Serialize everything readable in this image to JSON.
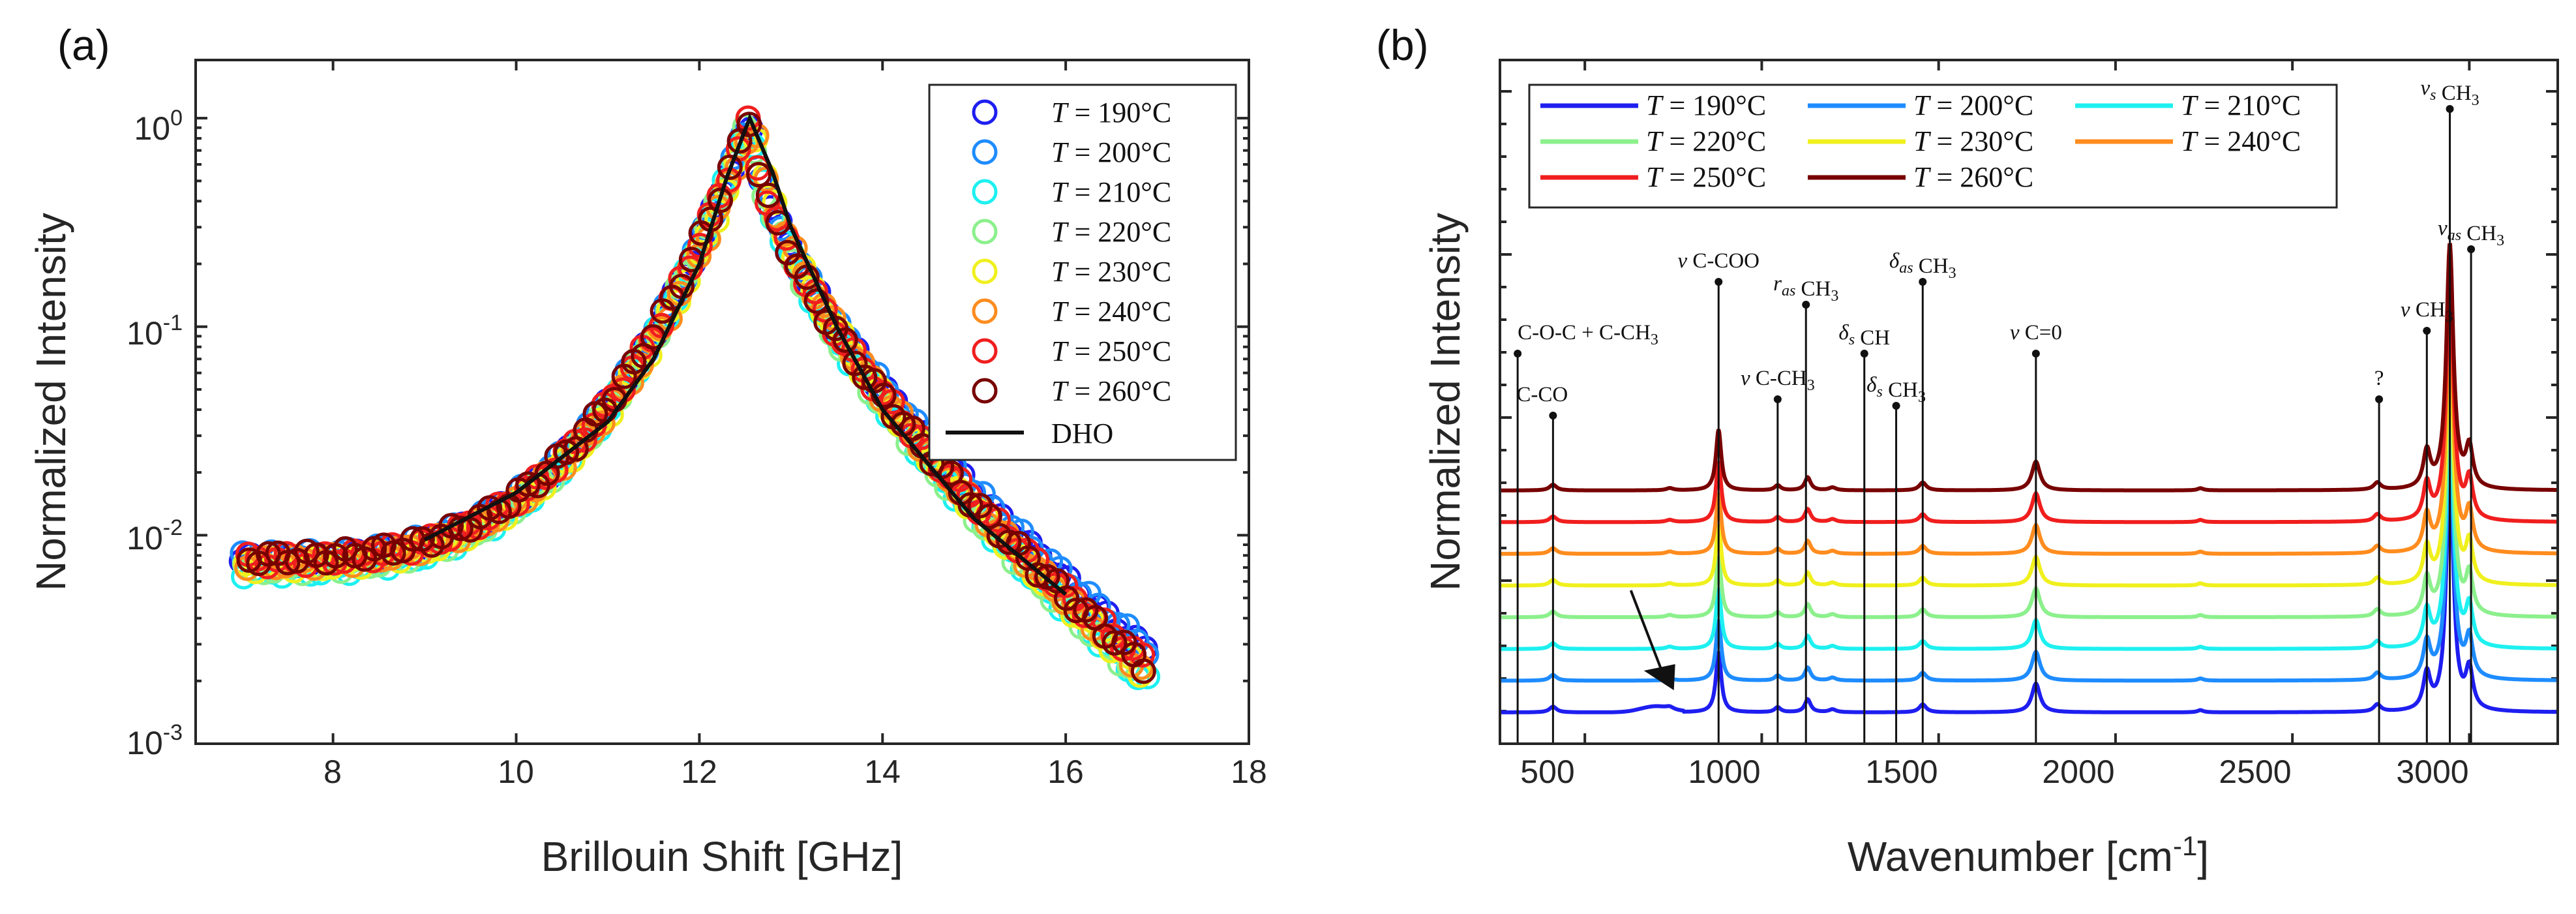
{
  "series_colors": [
    "#1e1ef0",
    "#1e8cff",
    "#1ef0f0",
    "#8cf08c",
    "#f0f01e",
    "#ff8c1e",
    "#f01e1e",
    "#780000"
  ],
  "chart_data": [
    {
      "panel": "(a)",
      "type": "scatter",
      "xlabel": "Brillouin Shift [GHz]",
      "ylabel": "Normalized Intensity",
      "xlim": [
        6.5,
        18
      ],
      "ylim": [
        0.001,
        1.9
      ],
      "yscale": "log",
      "xticks": [
        "8",
        "10",
        "12",
        "14",
        "16",
        "18"
      ],
      "yticks": [
        {
          "base": "10",
          "exp": "-3"
        },
        {
          "base": "10",
          "exp": "-2"
        },
        {
          "base": "10",
          "exp": "-1"
        },
        {
          "base": "10",
          "exp": "0"
        }
      ],
      "legend_position": "top-right",
      "series": [
        {
          "name": "T = 190°C",
          "label_var": "T",
          "label_val": "190°C",
          "x_range": [
            7.0,
            16.9
          ],
          "peak_x": 12.55,
          "y_at_7": 0.0075,
          "y_at_17": 0.0025
        },
        {
          "name": "T = 200°C",
          "label_var": "T",
          "label_val": "200°C",
          "x_range": [
            7.0,
            16.9
          ],
          "peak_x": 12.55,
          "y_at_7": 0.0078,
          "y_at_17": 0.0026
        },
        {
          "name": "T = 210°C",
          "label_var": "T",
          "label_val": "210°C",
          "x_range": [
            7.0,
            16.9
          ],
          "peak_x": 12.55,
          "y_at_7": 0.0068,
          "y_at_17": 0.0018
        },
        {
          "name": "T = 220°C",
          "label_var": "T",
          "label_val": "220°C",
          "x_range": [
            7.0,
            16.9
          ],
          "peak_x": 12.55,
          "y_at_7": 0.007,
          "y_at_17": 0.0018
        },
        {
          "name": "T = 230°C",
          "label_var": "T",
          "label_val": "230°C",
          "x_range": [
            7.0,
            16.9
          ],
          "peak_x": 12.6,
          "y_at_7": 0.0072,
          "y_at_17": 0.0019
        },
        {
          "name": "T = 240°C",
          "label_var": "T",
          "label_val": "240°C",
          "x_range": [
            7.0,
            16.9
          ],
          "peak_x": 12.6,
          "y_at_7": 0.0074,
          "y_at_17": 0.002
        },
        {
          "name": "T = 250°C",
          "label_var": "T",
          "label_val": "250°C",
          "x_range": [
            7.0,
            16.9
          ],
          "peak_x": 12.55,
          "y_at_7": 0.0076,
          "y_at_17": 0.0022
        },
        {
          "name": "T = 260°C",
          "label_var": "T",
          "label_val": "260°C",
          "x_range": [
            7.0,
            16.9
          ],
          "peak_x": 12.55,
          "y_at_7": 0.0078,
          "y_at_17": 0.0021
        }
      ],
      "fit": {
        "name": "DHO",
        "label": "DHO",
        "x": [
          9.0,
          10.0,
          11.0,
          11.5,
          12.0,
          12.3,
          12.55,
          12.8,
          13.0,
          13.5,
          14.0,
          15.0,
          16.0
        ],
        "y": [
          0.0095,
          0.016,
          0.035,
          0.07,
          0.2,
          0.52,
          1.0,
          0.55,
          0.3,
          0.1,
          0.04,
          0.012,
          0.0052
        ]
      }
    },
    {
      "panel": "(b)",
      "type": "line",
      "xlabel": "Wavenumber [cm",
      "xlabel_sup": "-1",
      "xlabel_end": "]",
      "ylabel": "Normalized Intensity",
      "xlim": [
        260,
        3250
      ],
      "xticks": [
        "500",
        "1000",
        "1500",
        "2000",
        "2500",
        "3000"
      ],
      "legend_position": "top-left",
      "series": [
        {
          "name": "T = 190°C",
          "label_var": "T",
          "label_val": "190°C",
          "offset": 0.0
        },
        {
          "name": "T = 200°C",
          "label_var": "T",
          "label_val": "200°C",
          "offset": 0.1
        },
        {
          "name": "T = 210°C",
          "label_var": "T",
          "label_val": "210°C",
          "offset": 0.2
        },
        {
          "name": "T = 220°C",
          "label_var": "T",
          "label_val": "220°C",
          "offset": 0.3
        },
        {
          "name": "T = 230°C",
          "label_var": "T",
          "label_val": "230°C",
          "offset": 0.4
        },
        {
          "name": "T = 240°C",
          "label_var": "T",
          "label_val": "240°C",
          "offset": 0.5
        },
        {
          "name": "T = 250°C",
          "label_var": "T",
          "label_val": "250°C",
          "offset": 0.6
        },
        {
          "name": "T = 260°C",
          "label_var": "T",
          "label_val": "260°C",
          "offset": 0.7
        }
      ],
      "peaks": [
        {
          "x": 410,
          "h": 0.08,
          "w": 12
        },
        {
          "x": 740,
          "h": 0.03,
          "w": 12
        },
        {
          "x": 878,
          "h": 0.85,
          "w": 9
        },
        {
          "x": 1045,
          "h": 0.07,
          "w": 10
        },
        {
          "x": 1130,
          "h": 0.18,
          "w": 10
        },
        {
          "x": 1200,
          "h": 0.04,
          "w": 12
        },
        {
          "x": 1455,
          "h": 0.11,
          "w": 12
        },
        {
          "x": 1775,
          "h": 0.4,
          "w": 14
        },
        {
          "x": 2240,
          "h": 0.03,
          "w": 10
        },
        {
          "x": 2740,
          "h": 0.1,
          "w": 12
        },
        {
          "x": 2880,
          "h": 0.5,
          "w": 12
        },
        {
          "x": 2945,
          "h": 3.4,
          "w": 12
        },
        {
          "x": 3000,
          "h": 0.55,
          "w": 12
        }
      ],
      "annotations": [
        {
          "x": 310,
          "y": 1.1,
          "label": "C-O-C + C-CH",
          "sub": "3"
        },
        {
          "x": 410,
          "y": 0.91,
          "label": "C-CO",
          "sub": ""
        },
        {
          "x": 878,
          "y": 1.32,
          "greek": "ν",
          "label": " C-COO",
          "sub": ""
        },
        {
          "x": 1045,
          "y": 0.96,
          "greek": "ν",
          "label": " C-CH",
          "sub": "3"
        },
        {
          "x": 1125,
          "y": 1.25,
          "greek": "r",
          "gsub": "as",
          "label": " CH",
          "sub": "3"
        },
        {
          "x": 1290,
          "y": 1.1,
          "greek": "δ",
          "gsub": "s",
          "label": " CH",
          "sub": ""
        },
        {
          "x": 1380,
          "y": 0.94,
          "greek": "δ",
          "gsub": "s",
          "label": " CH",
          "sub": "3"
        },
        {
          "x": 1455,
          "y": 1.32,
          "greek": "δ",
          "gsub": "as",
          "label": " CH",
          "sub": "3"
        },
        {
          "x": 1775,
          "y": 1.1,
          "greek": "ν",
          "label": " C=0",
          "sub": ""
        },
        {
          "x": 2745,
          "y": 0.96,
          "label": "?",
          "sub": ""
        },
        {
          "x": 2880,
          "y": 1.17,
          "greek": "ν",
          "label": " CH",
          "sub": "3"
        },
        {
          "x": 2945,
          "y": 1.85,
          "greek": "ν",
          "gsub": "s",
          "label": " CH",
          "sub": "3"
        },
        {
          "x": 3005,
          "y": 1.42,
          "greek": "ν",
          "gsub": "as",
          "label": " CH",
          "sub": "3"
        }
      ],
      "arrow": {
        "from": [
          630,
          0.36
        ],
        "to": [
          700,
          0.1
        ]
      }
    }
  ]
}
